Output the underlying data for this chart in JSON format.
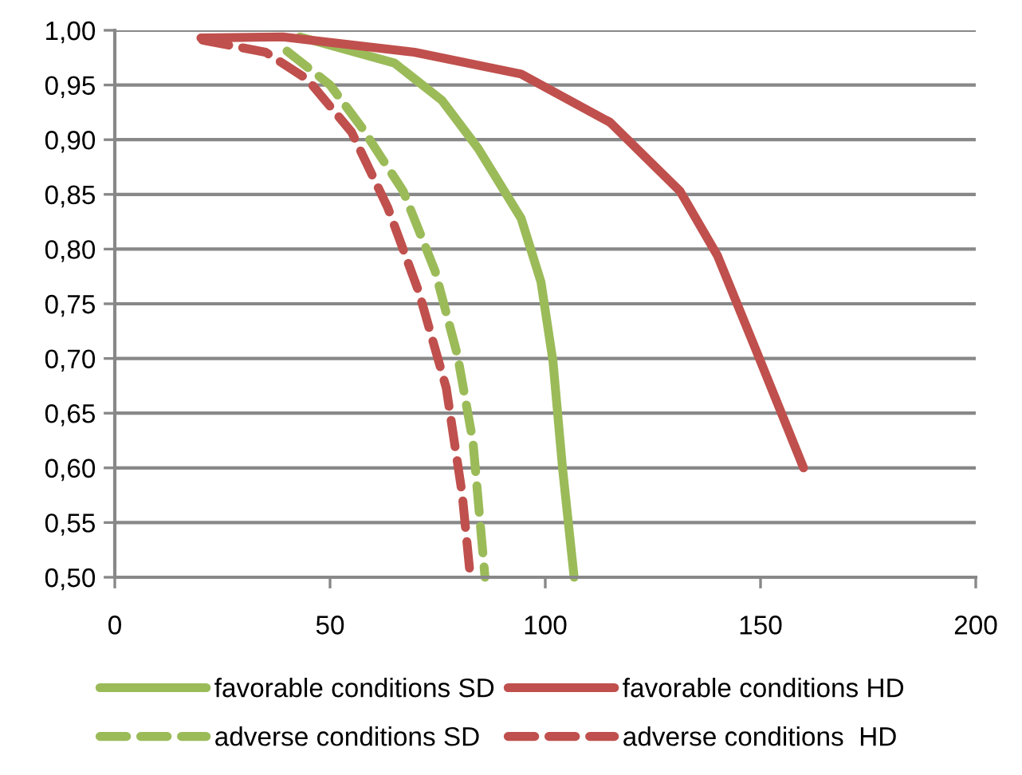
{
  "chart_data": {
    "type": "line",
    "xlim": [
      0,
      200
    ],
    "xticks": [
      0,
      50,
      100,
      150,
      200
    ],
    "ylim": [
      0.5,
      1.0
    ],
    "yticks": [
      {
        "value": 0.5,
        "label": "0,50"
      },
      {
        "value": 0.55,
        "label": "0,55"
      },
      {
        "value": 0.6,
        "label": "0,60"
      },
      {
        "value": 0.65,
        "label": "0,65"
      },
      {
        "value": 0.7,
        "label": "0,70"
      },
      {
        "value": 0.75,
        "label": "0,75"
      },
      {
        "value": 0.8,
        "label": "0,80"
      },
      {
        "value": 0.85,
        "label": "0,85"
      },
      {
        "value": 0.9,
        "label": "0,90"
      },
      {
        "value": 0.95,
        "label": "0,95"
      },
      {
        "value": 1.0,
        "label": "1,00"
      }
    ],
    "grid": "y",
    "legend": "bottom",
    "marker": "none",
    "series": [
      {
        "name": "favorable conditions SD",
        "color": "#9bbb59",
        "line_style": "solid",
        "x": [
          43,
          65,
          76,
          84.4,
          94.4,
          99,
          101.8,
          104,
          106.7
        ],
        "values": [
          0.994,
          0.97,
          0.936,
          0.892,
          0.828,
          0.77,
          0.697,
          0.6,
          0.5
        ]
      },
      {
        "name": "adverse conditions SD",
        "color": "#9bbb59",
        "line_style": "dashed",
        "x": [
          40,
          50,
          57.4,
          67,
          74.4,
          79.6,
          83.2,
          86
        ],
        "values": [
          0.981,
          0.95,
          0.911,
          0.853,
          0.78,
          0.703,
          0.624,
          0.5
        ]
      },
      {
        "name": "favorable conditions HD",
        "color": "#c0504d",
        "line_style": "solid",
        "x": [
          20,
          39,
          69.6,
          94.4,
          100,
          115,
          131.3,
          140,
          148.6,
          160
        ],
        "values": [
          0.993,
          0.994,
          0.98,
          0.96,
          0.948,
          0.916,
          0.853,
          0.794,
          0.711,
          0.6
        ]
      },
      {
        "name": "adverse conditions  HD",
        "color": "#c0504d",
        "line_style": "dashed",
        "x": [
          20.4,
          35,
          44.8,
          55,
          63.4,
          70.7,
          77,
          80.7,
          82.6
        ],
        "values": [
          0.991,
          0.98,
          0.955,
          0.907,
          0.838,
          0.76,
          0.673,
          0.576,
          0.5
        ]
      }
    ]
  }
}
